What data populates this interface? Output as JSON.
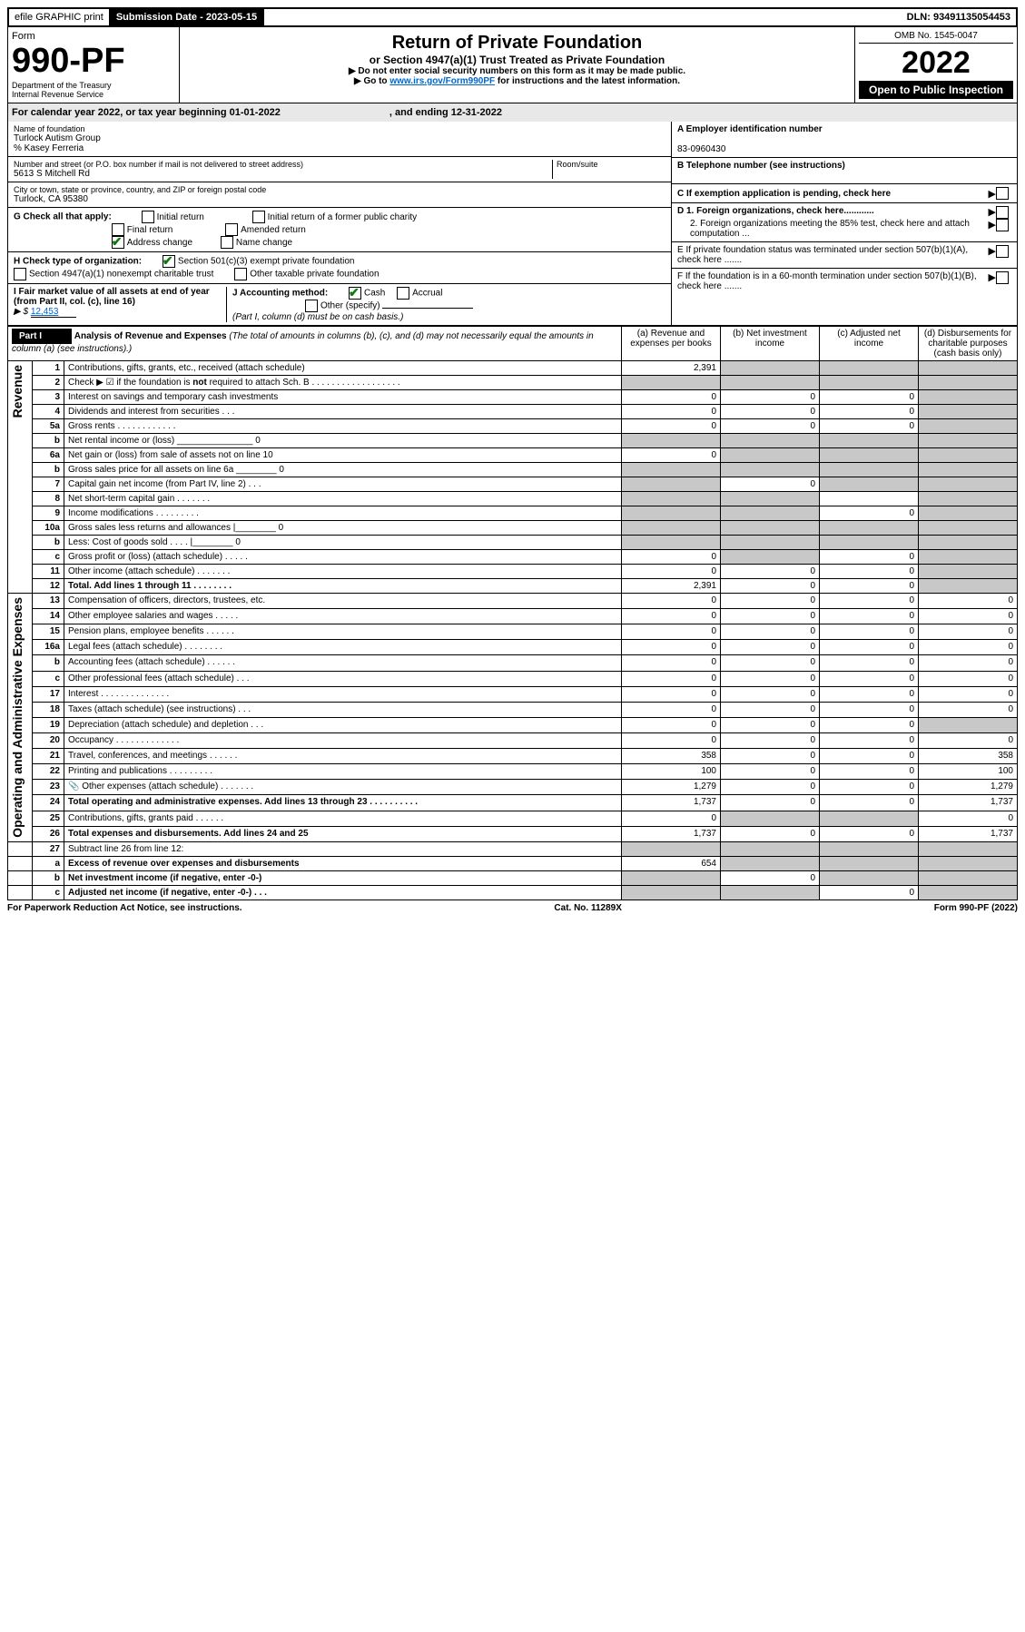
{
  "topbar": {
    "efile": "efile GRAPHIC print",
    "submission_label": "Submission Date - 2023-05-15",
    "dln_label": "DLN: 93491135054453"
  },
  "header": {
    "form_label": "Form",
    "form_no": "990-PF",
    "dept": "Department of the Treasury",
    "irs": "Internal Revenue Service",
    "title": "Return of Private Foundation",
    "subtitle": "or Section 4947(a)(1) Trust Treated as Private Foundation",
    "instr1": "▶ Do not enter social security numbers on this form as it may be made public.",
    "instr2_pre": "▶ Go to ",
    "instr2_link": "www.irs.gov/Form990PF",
    "instr2_post": " for instructions and the latest information.",
    "omb": "OMB No. 1545-0047",
    "year": "2022",
    "open": "Open to Public Inspection"
  },
  "calyear": {
    "text": "For calendar year 2022, or tax year beginning 01-01-2022",
    "ending": ", and ending 12-31-2022"
  },
  "foundation": {
    "name_label": "Name of foundation",
    "name": "Turlock Autism Group",
    "care_of": "% Kasey Ferreria",
    "addr_label": "Number and street (or P.O. box number if mail is not delivered to street address)",
    "addr": "5613 S Mitchell Rd",
    "room_label": "Room/suite",
    "city_label": "City or town, state or province, country, and ZIP or foreign postal code",
    "city": "Turlock, CA  95380"
  },
  "right_info": {
    "a_label": "A Employer identification number",
    "a_val": "83-0960430",
    "b_label": "B Telephone number (see instructions)",
    "c_label": "C If exemption application is pending, check here",
    "d1_label": "D 1. Foreign organizations, check here............",
    "d2_label": "2. Foreign organizations meeting the 85% test, check here and attach computation ...",
    "e_label": "E  If private foundation status was terminated under section 507(b)(1)(A), check here .......",
    "f_label": "F  If the foundation is in a 60-month termination under section 507(b)(1)(B), check here ......."
  },
  "g": {
    "label": "G Check all that apply:",
    "opts": [
      "Initial return",
      "Final return",
      "Address change",
      "Initial return of a former public charity",
      "Amended return",
      "Name change"
    ]
  },
  "h": {
    "label": "H Check type of organization:",
    "opt1": "Section 501(c)(3) exempt private foundation",
    "opt2": "Section 4947(a)(1) nonexempt charitable trust",
    "opt3": "Other taxable private foundation"
  },
  "i": {
    "label": "I Fair market value of all assets at end of year (from Part II, col. (c), line 16)",
    "val_prefix": "▶ $",
    "val": "12,453"
  },
  "j": {
    "label": "J Accounting method:",
    "cash": "Cash",
    "accrual": "Accrual",
    "other": "Other (specify)",
    "note": "(Part I, column (d) must be on cash basis.)"
  },
  "part1": {
    "label": "Part I",
    "title": "Analysis of Revenue and Expenses",
    "note": "(The total of amounts in columns (b), (c), and (d) may not necessarily equal the amounts in column (a) (see instructions).)",
    "cols": {
      "a": "(a)  Revenue and expenses per books",
      "b": "(b)  Net investment income",
      "c": "(c)  Adjusted net income",
      "d": "(d)  Disbursements for charitable purposes (cash basis only)"
    }
  },
  "sidelabels": {
    "rev": "Revenue",
    "exp": "Operating and Administrative Expenses"
  },
  "rows": [
    {
      "n": "1",
      "d": "Contributions, gifts, grants, etc., received (attach schedule)",
      "a": "2,391",
      "b": "",
      "c": "",
      "ds": "",
      "sb": true,
      "sc": true,
      "sd": true
    },
    {
      "n": "2",
      "d": "Check ▶ ☑ if the foundation is not required to attach Sch. B  .  .  .  .  .  .  .  .  .  .  .  .  .  .  .  .  .  .",
      "a": "",
      "b": "",
      "c": "",
      "ds": "",
      "sa": true,
      "sb": true,
      "sc": true,
      "sd": true,
      "bold_not": true
    },
    {
      "n": "3",
      "d": "Interest on savings and temporary cash investments",
      "a": "0",
      "b": "0",
      "c": "0",
      "ds": "",
      "sd": true
    },
    {
      "n": "4",
      "d": "Dividends and interest from securities  .   .   .",
      "a": "0",
      "b": "0",
      "c": "0",
      "ds": "",
      "sd": true
    },
    {
      "n": "5a",
      "d": "Gross rents  .   .   .   .   .   .   .   .   .   .   .   .",
      "a": "0",
      "b": "0",
      "c": "0",
      "ds": "",
      "sd": true
    },
    {
      "n": "b",
      "d": "Net rental income or (loss) _______________ 0",
      "a": "",
      "b": "",
      "c": "",
      "ds": "",
      "sa": true,
      "sb": true,
      "sc": true,
      "sd": true
    },
    {
      "n": "6a",
      "d": "Net gain or (loss) from sale of assets not on line 10",
      "a": "0",
      "b": "",
      "c": "",
      "ds": "",
      "sb": true,
      "sc": true,
      "sd": true
    },
    {
      "n": "b",
      "d": "Gross sales price for all assets on line 6a ________ 0",
      "a": "",
      "b": "",
      "c": "",
      "ds": "",
      "sa": true,
      "sb": true,
      "sc": true,
      "sd": true
    },
    {
      "n": "7",
      "d": "Capital gain net income (from Part IV, line 2)  .   .   .",
      "a": "",
      "b": "0",
      "c": "",
      "ds": "",
      "sa": true,
      "sc": true,
      "sd": true
    },
    {
      "n": "8",
      "d": "Net short-term capital gain  .   .   .   .   .   .   .",
      "a": "",
      "b": "",
      "c": "",
      "ds": "",
      "sa": true,
      "sb": true,
      "sd": true
    },
    {
      "n": "9",
      "d": "Income modifications  .   .   .   .   .   .   .   .   .",
      "a": "",
      "b": "",
      "c": "0",
      "ds": "",
      "sa": true,
      "sb": true,
      "sd": true
    },
    {
      "n": "10a",
      "d": "Gross sales less returns and allowances  |________ 0",
      "a": "",
      "b": "",
      "c": "",
      "ds": "",
      "sa": true,
      "sb": true,
      "sc": true,
      "sd": true
    },
    {
      "n": "b",
      "d": "Less: Cost of goods sold   .   .   .   .   |________ 0",
      "a": "",
      "b": "",
      "c": "",
      "ds": "",
      "sa": true,
      "sb": true,
      "sc": true,
      "sd": true
    },
    {
      "n": "c",
      "d": "Gross profit or (loss) (attach schedule)   .   .   .   .   .",
      "a": "0",
      "b": "",
      "c": "0",
      "ds": "",
      "sb": true,
      "sd": true
    },
    {
      "n": "11",
      "d": "Other income (attach schedule)   .   .   .   .   .   .   .",
      "a": "0",
      "b": "0",
      "c": "0",
      "ds": "",
      "sd": true
    },
    {
      "n": "12",
      "d": "Total. Add lines 1 through 11   .   .   .   .   .   .   .   .",
      "a": "2,391",
      "b": "0",
      "c": "0",
      "ds": "",
      "sd": true,
      "bold": true
    }
  ],
  "exp_rows": [
    {
      "n": "13",
      "d": "Compensation of officers, directors, trustees, etc.",
      "a": "0",
      "b": "0",
      "c": "0",
      "ds": "0"
    },
    {
      "n": "14",
      "d": "Other employee salaries and wages   .   .   .   .   .",
      "a": "0",
      "b": "0",
      "c": "0",
      "ds": "0"
    },
    {
      "n": "15",
      "d": "Pension plans, employee benefits  .   .   .   .   .   .",
      "a": "0",
      "b": "0",
      "c": "0",
      "ds": "0"
    },
    {
      "n": "16a",
      "d": "Legal fees (attach schedule)  .   .   .   .   .   .   .   .",
      "a": "0",
      "b": "0",
      "c": "0",
      "ds": "0"
    },
    {
      "n": "b",
      "d": "Accounting fees (attach schedule)  .   .   .   .   .   .",
      "a": "0",
      "b": "0",
      "c": "0",
      "ds": "0"
    },
    {
      "n": "c",
      "d": "Other professional fees (attach schedule)   .   .   .",
      "a": "0",
      "b": "0",
      "c": "0",
      "ds": "0"
    },
    {
      "n": "17",
      "d": "Interest  .   .   .   .   .   .   .   .   .   .   .   .   .   .",
      "a": "0",
      "b": "0",
      "c": "0",
      "ds": "0"
    },
    {
      "n": "18",
      "d": "Taxes (attach schedule) (see instructions)    .   .   .",
      "a": "0",
      "b": "0",
      "c": "0",
      "ds": "0"
    },
    {
      "n": "19",
      "d": "Depreciation (attach schedule) and depletion   .   .   .",
      "a": "0",
      "b": "0",
      "c": "0",
      "ds": "",
      "sd": true
    },
    {
      "n": "20",
      "d": "Occupancy  .   .   .   .   .   .   .   .   .   .   .   .   .",
      "a": "0",
      "b": "0",
      "c": "0",
      "ds": "0"
    },
    {
      "n": "21",
      "d": "Travel, conferences, and meetings  .   .   .   .   .   .",
      "a": "358",
      "b": "0",
      "c": "0",
      "ds": "358"
    },
    {
      "n": "22",
      "d": "Printing and publications  .   .   .   .   .   .   .   .   .",
      "a": "100",
      "b": "0",
      "c": "0",
      "ds": "100"
    },
    {
      "n": "23",
      "d": "Other expenses (attach schedule)  .   .   .   .   .   .   .",
      "a": "1,279",
      "b": "0",
      "c": "0",
      "ds": "1,279",
      "icon": true
    },
    {
      "n": "24",
      "d": "Total operating and administrative expenses. Add lines 13 through 23   .   .   .   .   .   .   .   .   .   .",
      "a": "1,737",
      "b": "0",
      "c": "0",
      "ds": "1,737",
      "bold": true
    },
    {
      "n": "25",
      "d": "Contributions, gifts, grants paid    .   .   .   .   .   .",
      "a": "0",
      "b": "",
      "c": "",
      "ds": "0",
      "sb": true,
      "sc": true
    },
    {
      "n": "26",
      "d": "Total expenses and disbursements. Add lines 24 and 25",
      "a": "1,737",
      "b": "0",
      "c": "0",
      "ds": "1,737",
      "bold": true
    }
  ],
  "bottom_rows": [
    {
      "n": "27",
      "d": "Subtract line 26 from line 12:",
      "a": "",
      "b": "",
      "c": "",
      "ds": "",
      "sa": true,
      "sb": true,
      "sc": true,
      "sd": true
    },
    {
      "n": "a",
      "d": "Excess of revenue over expenses and disbursements",
      "a": "654",
      "b": "",
      "c": "",
      "ds": "",
      "sb": true,
      "sc": true,
      "sd": true,
      "bold": true
    },
    {
      "n": "b",
      "d": "Net investment income (if negative, enter -0-)",
      "a": "",
      "b": "0",
      "c": "",
      "ds": "",
      "sa": true,
      "sc": true,
      "sd": true,
      "bold": true
    },
    {
      "n": "c",
      "d": "Adjusted net income (if negative, enter -0-)   .   .   .",
      "a": "",
      "b": "",
      "c": "0",
      "ds": "",
      "sa": true,
      "sb": true,
      "sd": true,
      "bold": true
    }
  ],
  "footer": {
    "left": "For Paperwork Reduction Act Notice, see instructions.",
    "center": "Cat. No. 11289X",
    "right": "Form 990-PF (2022)"
  }
}
